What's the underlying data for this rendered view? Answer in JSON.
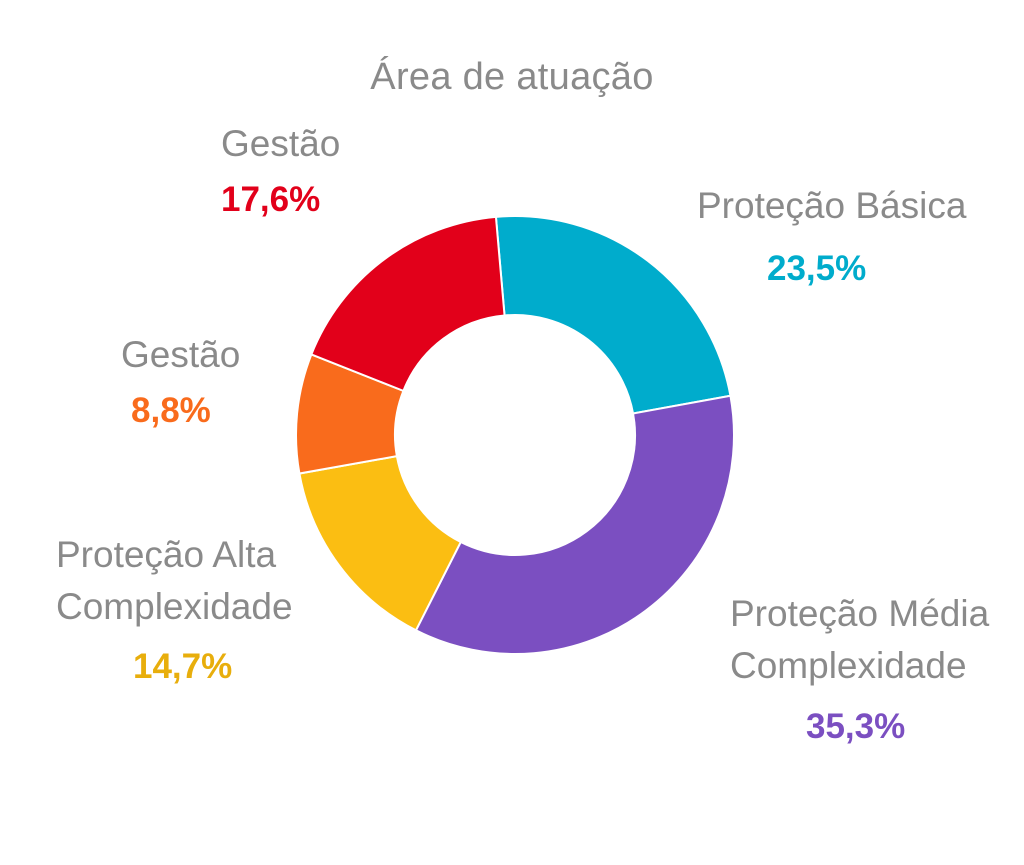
{
  "chart_data": {
    "type": "pie",
    "title": "Área de atuação",
    "slices": [
      {
        "label": "Proteção Básica",
        "value": 23.5,
        "value_label": "23,5%",
        "color": "#00ACCC"
      },
      {
        "label": "Proteção Média Complexidade",
        "value": 35.3,
        "value_label": "35,3%",
        "color": "#7B4FC1"
      },
      {
        "label": "Proteção Alta Complexidade",
        "value": 14.7,
        "value_label": "14,7%",
        "color": "#FBBE12"
      },
      {
        "label": "Gestão",
        "value": 8.8,
        "value_label": "8,8%",
        "color": "#F96B1C"
      },
      {
        "label": "Gestão",
        "value": 17.6,
        "value_label": "17,6%",
        "color": "#E2001A"
      }
    ],
    "labels_text": {
      "basica_line1": "Proteção Básica",
      "media_line1": "Proteção Média",
      "media_line2": "Complexidade",
      "alta_line1": "Proteção Alta",
      "alta_line2": "Complexidade",
      "gestao_small": "Gestão",
      "gestao_large": "Gestão"
    }
  }
}
